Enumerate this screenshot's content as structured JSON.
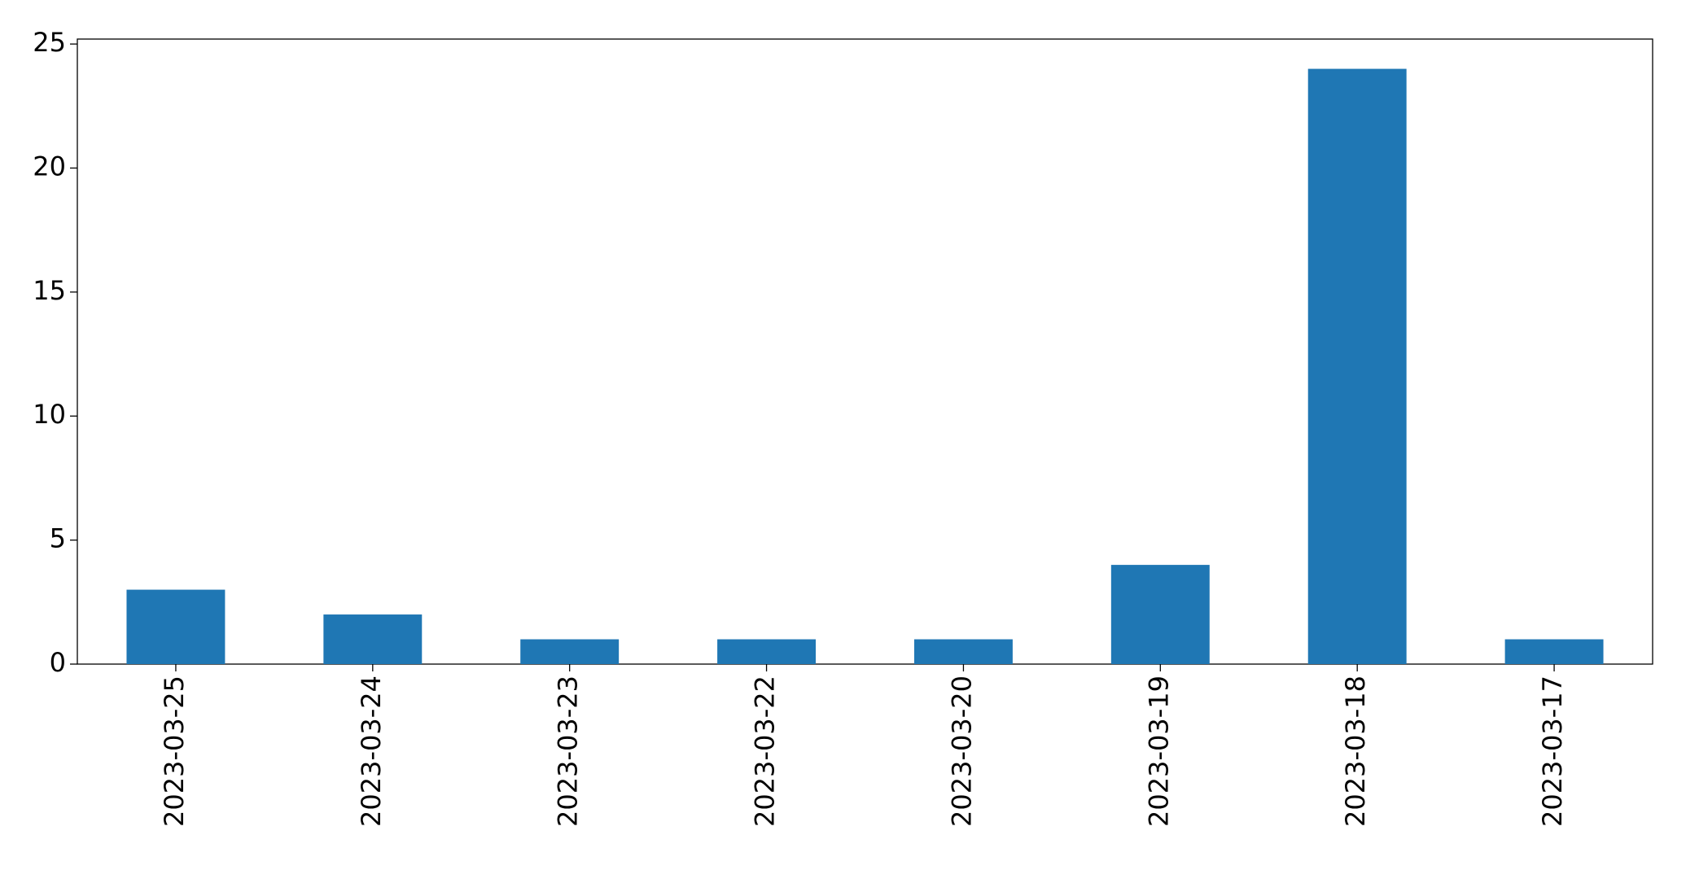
{
  "chart_data": {
    "type": "bar",
    "categories": [
      "2023-03-25",
      "2023-03-24",
      "2023-03-23",
      "2023-03-22",
      "2023-03-20",
      "2023-03-19",
      "2023-03-18",
      "2023-03-17"
    ],
    "values": [
      3,
      2,
      1,
      1,
      1,
      4,
      24,
      1
    ],
    "color": "#1f77b4",
    "ylim": [
      0,
      25.2
    ],
    "yticks": [
      0,
      5,
      10,
      15,
      20,
      25
    ],
    "grid": false
  }
}
